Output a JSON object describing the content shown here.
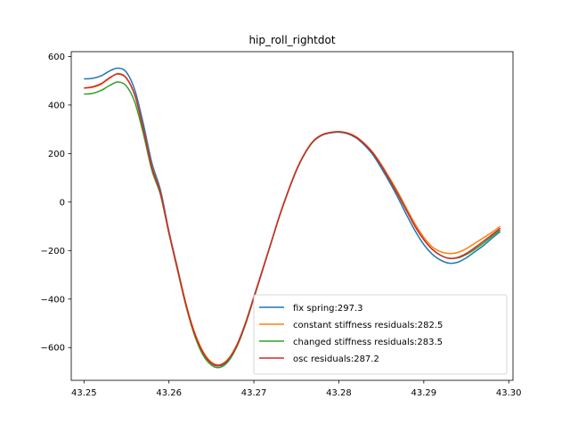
{
  "chart_data": {
    "type": "line",
    "title": "hip_roll_rightdot",
    "xlabel": "",
    "ylabel": "",
    "xlim": [
      43.2485,
      43.3005
    ],
    "ylim": [
      -735,
      620
    ],
    "x_ticks": [
      43.25,
      43.26,
      43.27,
      43.28,
      43.29,
      43.3
    ],
    "x_tick_labels": [
      "43.25",
      "43.26",
      "43.27",
      "43.28",
      "43.29",
      "43.30"
    ],
    "y_ticks": [
      600,
      400,
      200,
      0,
      -200,
      -400,
      -600
    ],
    "y_tick_labels": [
      "600",
      "400",
      "200",
      "0",
      "−200",
      "−400",
      "−600"
    ],
    "grid": false,
    "legend_position": "lower-right",
    "series": [
      {
        "name": "fix spring:297.3",
        "color": "#1f77b4",
        "x": [
          43.25,
          43.251,
          43.252,
          43.253,
          43.254,
          43.255,
          43.256,
          43.257,
          43.258,
          43.259,
          43.26,
          43.261,
          43.262,
          43.263,
          43.264,
          43.265,
          43.266,
          43.267,
          43.268,
          43.269,
          43.27,
          43.271,
          43.272,
          43.273,
          43.274,
          43.275,
          43.276,
          43.277,
          43.278,
          43.279,
          43.28,
          43.281,
          43.282,
          43.283,
          43.284,
          43.285,
          43.286,
          43.287,
          43.288,
          43.289,
          43.29,
          43.291,
          43.292,
          43.293,
          43.294,
          43.295,
          43.296,
          43.297,
          43.298,
          43.299
        ],
        "y": [
          508,
          510,
          520,
          540,
          552,
          535,
          460,
          320,
          160,
          50,
          -120,
          -270,
          -420,
          -540,
          -620,
          -665,
          -675,
          -650,
          -590,
          -500,
          -390,
          -280,
          -170,
          -60,
          40,
          130,
          200,
          250,
          275,
          285,
          288,
          282,
          265,
          235,
          195,
          140,
          80,
          15,
          -55,
          -120,
          -175,
          -215,
          -240,
          -252,
          -248,
          -230,
          -205,
          -180,
          -150,
          -122
        ]
      },
      {
        "name": "constant stiffness residuals:282.5",
        "color": "#ff7f0e",
        "x": [
          43.25,
          43.251,
          43.252,
          43.253,
          43.254,
          43.255,
          43.256,
          43.257,
          43.258,
          43.259,
          43.26,
          43.261,
          43.262,
          43.263,
          43.264,
          43.265,
          43.266,
          43.267,
          43.268,
          43.269,
          43.27,
          43.271,
          43.272,
          43.273,
          43.274,
          43.275,
          43.276,
          43.277,
          43.278,
          43.279,
          43.28,
          43.281,
          43.282,
          43.283,
          43.284,
          43.285,
          43.286,
          43.287,
          43.288,
          43.289,
          43.29,
          43.291,
          43.292,
          43.293,
          43.294,
          43.295,
          43.296,
          43.297,
          43.298,
          43.299
        ],
        "y": [
          470,
          473,
          485,
          510,
          530,
          512,
          440,
          300,
          145,
          40,
          -125,
          -272,
          -418,
          -535,
          -615,
          -660,
          -670,
          -646,
          -588,
          -500,
          -392,
          -282,
          -170,
          -58,
          42,
          132,
          202,
          252,
          277,
          287,
          290,
          285,
          270,
          242,
          205,
          155,
          98,
          38,
          -28,
          -92,
          -145,
          -185,
          -205,
          -212,
          -208,
          -192,
          -170,
          -148,
          -125,
          -100
        ]
      },
      {
        "name": "changed stiffness residuals:283.5",
        "color": "#2ca02c",
        "x": [
          43.25,
          43.251,
          43.252,
          43.253,
          43.254,
          43.255,
          43.256,
          43.257,
          43.258,
          43.259,
          43.26,
          43.261,
          43.262,
          43.263,
          43.264,
          43.265,
          43.266,
          43.267,
          43.268,
          43.269,
          43.27,
          43.271,
          43.272,
          43.273,
          43.274,
          43.275,
          43.276,
          43.277,
          43.278,
          43.279,
          43.28,
          43.281,
          43.282,
          43.283,
          43.284,
          43.285,
          43.286,
          43.287,
          43.288,
          43.289,
          43.29,
          43.291,
          43.292,
          43.293,
          43.294,
          43.295,
          43.296,
          43.297,
          43.298,
          43.299
        ],
        "y": [
          445,
          448,
          460,
          480,
          495,
          478,
          410,
          280,
          130,
          30,
          -130,
          -280,
          -428,
          -548,
          -630,
          -672,
          -682,
          -656,
          -596,
          -506,
          -396,
          -284,
          -172,
          -60,
          40,
          130,
          200,
          250,
          276,
          286,
          289,
          284,
          268,
          240,
          202,
          150,
          92,
          30,
          -36,
          -102,
          -155,
          -195,
          -220,
          -232,
          -230,
          -216,
          -195,
          -170,
          -142,
          -115
        ]
      },
      {
        "name": "osc residuals:287.2",
        "color": "#d62728",
        "x": [
          43.25,
          43.251,
          43.252,
          43.253,
          43.254,
          43.255,
          43.256,
          43.257,
          43.258,
          43.259,
          43.26,
          43.261,
          43.262,
          43.263,
          43.264,
          43.265,
          43.266,
          43.267,
          43.268,
          43.269,
          43.27,
          43.271,
          43.272,
          43.273,
          43.274,
          43.275,
          43.276,
          43.277,
          43.278,
          43.279,
          43.28,
          43.281,
          43.282,
          43.283,
          43.284,
          43.285,
          43.286,
          43.287,
          43.288,
          43.289,
          43.29,
          43.291,
          43.292,
          43.293,
          43.294,
          43.295,
          43.296,
          43.297,
          43.298,
          43.299
        ],
        "y": [
          470,
          475,
          488,
          512,
          528,
          510,
          438,
          298,
          142,
          38,
          -126,
          -275,
          -422,
          -540,
          -620,
          -664,
          -673,
          -648,
          -590,
          -500,
          -392,
          -282,
          -170,
          -58,
          42,
          132,
          202,
          252,
          277,
          287,
          290,
          284,
          268,
          240,
          202,
          150,
          90,
          28,
          -38,
          -102,
          -155,
          -195,
          -220,
          -232,
          -228,
          -212,
          -188,
          -162,
          -135,
          -108
        ]
      }
    ]
  }
}
